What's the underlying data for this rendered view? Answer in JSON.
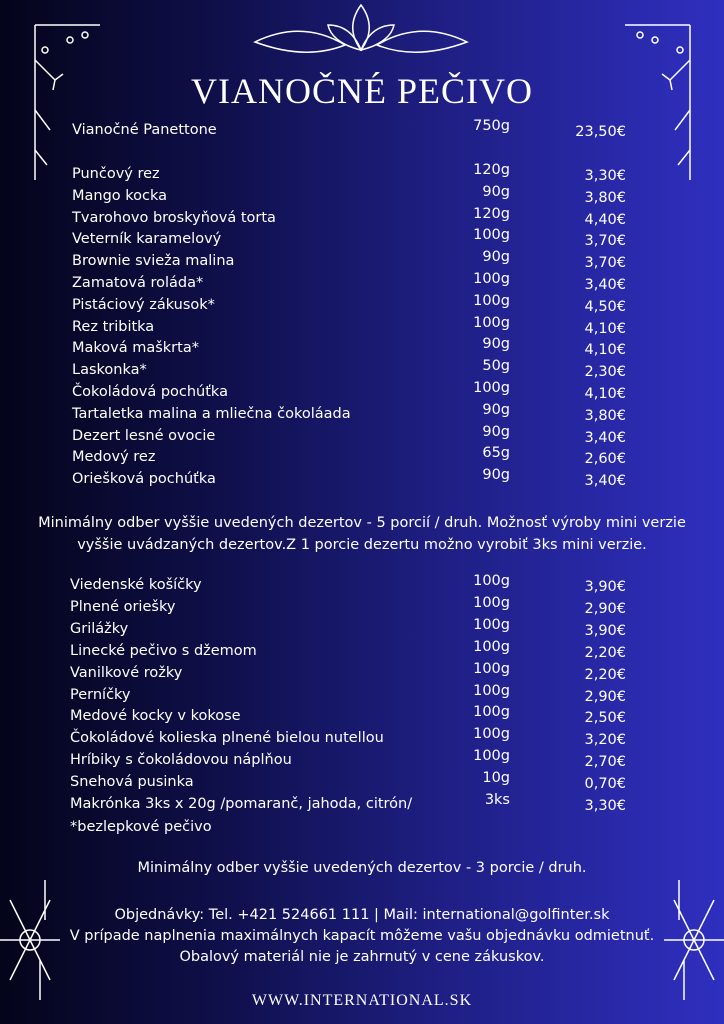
{
  "title": "VIANOČNÉ PEČIVO",
  "featured": {
    "name": "Vianočné Panettone",
    "weight": "750g",
    "price": "23,50€"
  },
  "section1": [
    {
      "name": "Punčový rez",
      "weight": "120g",
      "price": "3,30€"
    },
    {
      "name": "Mango kocka",
      "weight": "90g",
      "price": "3,80€"
    },
    {
      "name": "Tvarohovo broskyňová torta",
      "weight": "120g",
      "price": "4,40€"
    },
    {
      "name": "Veterník karamelový",
      "weight": "100g",
      "price": "3,70€"
    },
    {
      "name": "Brownie svieža malina",
      "weight": "90g",
      "price": "3,70€"
    },
    {
      "name": "Zamatová roláda*",
      "weight": "100g",
      "price": "3,40€"
    },
    {
      "name": "Pistáciový zákusok*",
      "weight": "100g",
      "price": "4,50€"
    },
    {
      "name": "Rez tribitka",
      "weight": "100g",
      "price": "4,10€"
    },
    {
      "name": "Maková maškrta*",
      "weight": "90g",
      "price": "4,10€"
    },
    {
      "name": "Laskonka*",
      "weight": "50g",
      "price": "2,30€"
    },
    {
      "name": "Čokoládová pochúťka",
      "weight": "100g",
      "price": "4,10€"
    },
    {
      "name": "Tartaletka malina a mliečna čokoláada",
      "weight": "90g",
      "price": "3,80€"
    },
    {
      "name": "Dezert lesné ovocie",
      "weight": "90g",
      "price": "3,40€"
    },
    {
      "name": "Medový rez",
      "weight": "65g",
      "price": "2,60€"
    },
    {
      "name": "Oriešková pochúťka",
      "weight": "90g",
      "price": "3,40€"
    }
  ],
  "note1": [
    "Minimálny odber vyššie uvedených dezertov -  5 porcií / druh. Možnosť výroby mini verzie",
    "vyššie uvádzaných dezertov.Z 1 porcie dezertu možno vyrobiť 3ks mini verzie."
  ],
  "section2": [
    {
      "name": "Viedenské košíčky",
      "weight": "100g",
      "price": "3,90€"
    },
    {
      "name": "Plnené oriešky",
      "weight": "100g",
      "price": "2,90€"
    },
    {
      "name": "Grilážky",
      "weight": "100g",
      "price": "3,90€"
    },
    {
      "name": "Linecké pečivo s džemom",
      "weight": "100g",
      "price": "2,20€"
    },
    {
      "name": "Vanilkové rožky",
      "weight": "100g",
      "price": "2,20€"
    },
    {
      "name": "Perníčky",
      "weight": "100g",
      "price": "2,90€"
    },
    {
      "name": "Medové kocky v kokose",
      "weight": "100g",
      "price": "2,50€"
    },
    {
      "name": "Čokoládové kolieska plnené bielou nutellou",
      "weight": "100g",
      "price": "3,20€"
    },
    {
      "name": "Hríbiky s čokoládovou náplňou",
      "weight": "100g",
      "price": "2,70€"
    },
    {
      "name": "Snehová pusinka",
      "weight": "10g",
      "price": "0,70€"
    },
    {
      "name": "Makrónka 3ks x 20g /pomaranč, jahoda, citrón/",
      "weight": "3ks",
      "price": "3,30€"
    }
  ],
  "gluten_note": "*bezlepkové pečivo",
  "note2": "Minimálny odber vyššie uvedených dezertov -  3 porcie / druh.",
  "contact": [
    "Objednávky: Tel. +421 524661 111 | Mail: international@golfinter.sk",
    "V prípade naplnenia maximálnych kapacít môžeme vašu objednávku odmietnuť.",
    "Obalový materiál nie je zahrnutý v cene zákuskov."
  ],
  "website": "WWW.INTERNATIONAL.SK",
  "colors": {
    "bg_left": "#04041a",
    "bg_right": "#2f2fc0",
    "text": "#ffffff"
  }
}
